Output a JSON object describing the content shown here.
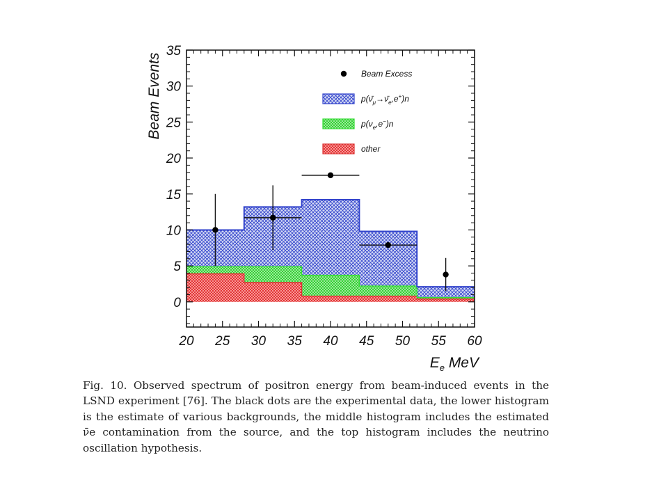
{
  "chart_data": {
    "type": "bar",
    "title": "",
    "xlabel": "E_e MeV",
    "xlabel_main": "E",
    "xlabel_sub": "e",
    "xlabel_unit": "MeV",
    "ylabel": "Beam Events",
    "xlim": [
      20,
      60
    ],
    "ylim": [
      -3.5,
      35
    ],
    "xticks": [
      20,
      25,
      30,
      35,
      40,
      45,
      50,
      55,
      60
    ],
    "yticks": [
      0,
      5,
      10,
      15,
      20,
      25,
      30,
      35
    ],
    "bin_edges": [
      20,
      28,
      36,
      44,
      52,
      60
    ],
    "stacked": true,
    "series": [
      {
        "name": "other",
        "color": "#dd3333",
        "values": [
          3.9,
          2.7,
          0.8,
          0.8,
          0.4
        ]
      },
      {
        "name": "p(ν_e,e⁻)n",
        "color": "#33dd33",
        "values": [
          1.0,
          2.2,
          2.9,
          1.4,
          0.2
        ]
      },
      {
        "name": "p(ν̄_μ→ν̄_e,e⁺)n",
        "color": "#3344cc",
        "values": [
          5.1,
          8.3,
          10.5,
          7.6,
          1.5
        ]
      }
    ],
    "data_points": {
      "name": "Beam Excess",
      "x": [
        24,
        32,
        40,
        48,
        56
      ],
      "y": [
        10.0,
        11.7,
        17.6,
        7.9,
        3.8
      ],
      "yerr_low": [
        5.0,
        4.5,
        0,
        0,
        2.3
      ],
      "yerr_high": [
        5.0,
        4.5,
        0,
        0,
        2.3
      ],
      "xerr": [
        0,
        4,
        4,
        4,
        0
      ]
    },
    "legend": {
      "placement": "top-right",
      "entries": [
        {
          "type": "marker",
          "label_main": "Beam Excess"
        },
        {
          "type": "box",
          "series": 2,
          "label_main": "p(ν̄",
          "label_sub1": "μ",
          "label_mid": "→ν̄",
          "label_sub2": "e",
          "label_after": ",e",
          "label_sup": "+",
          "label_end": ")n"
        },
        {
          "type": "box",
          "series": 1,
          "label_main": "p(ν",
          "label_sub1": "e",
          "label_mid": ",e",
          "label_sup": "−",
          "label_end": ")n"
        },
        {
          "type": "box",
          "series": 0,
          "label_main": "other"
        }
      ]
    }
  },
  "caption": "Fig. 10. Observed spectrum of positron energy from beam-induced events in the LSND experiment [76]. The black dots are the experimental data, the lower histogram is the estimate of various backgrounds, the middle histogram includes the estimated ν̄e contamination from the source, and the top histogram includes the neutrino oscillation hypothesis."
}
